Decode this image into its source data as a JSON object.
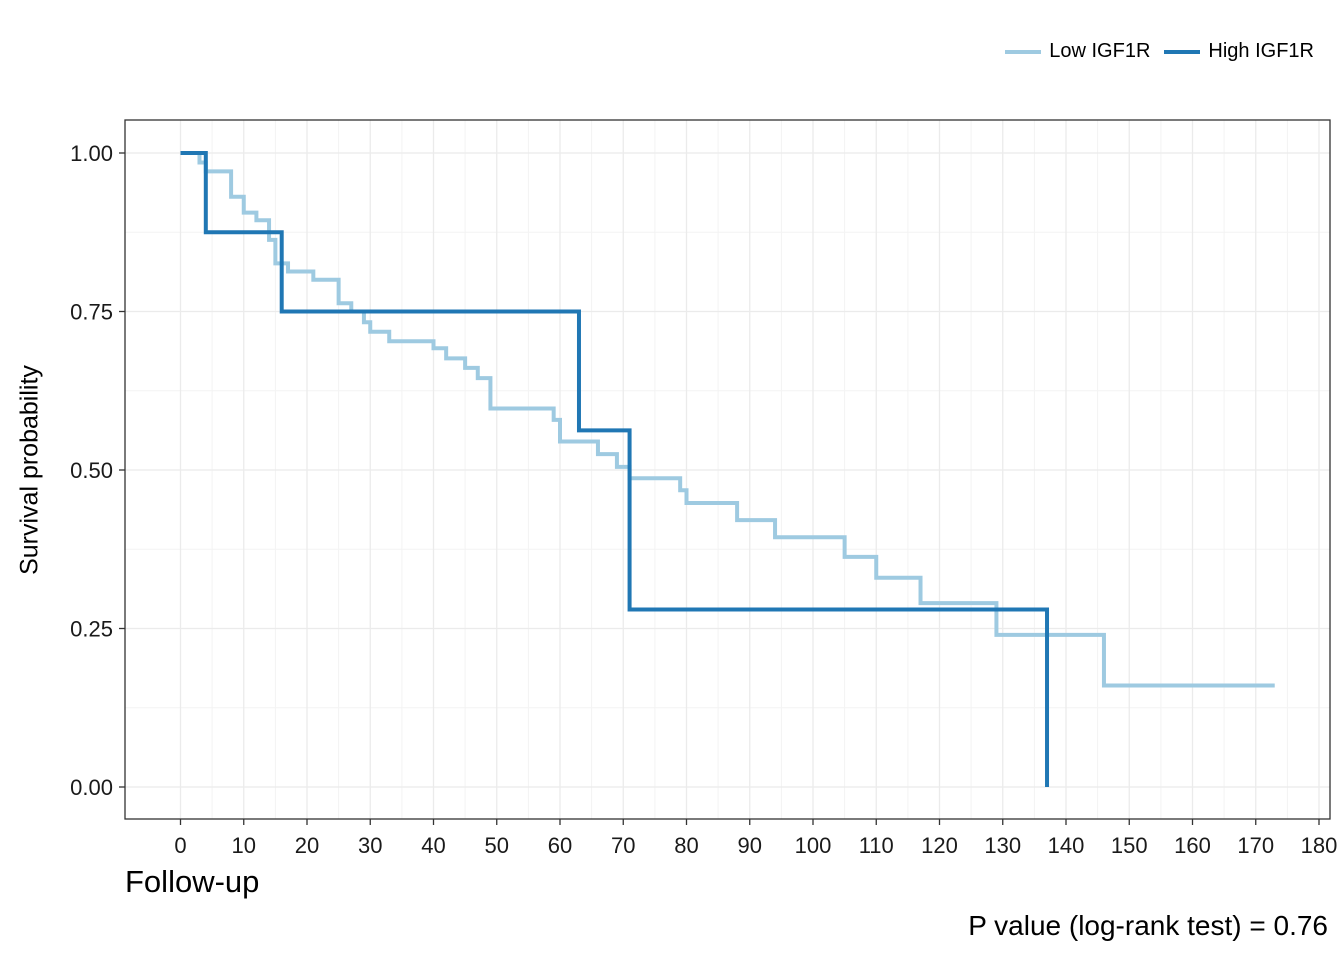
{
  "chart_data": {
    "type": "line",
    "subtype": "kaplan-meier step",
    "xlabel": "Follow-up",
    "ylabel": "Survival probability",
    "xlim": [
      0,
      180
    ],
    "ylim": [
      0,
      1
    ],
    "x_ticks": [
      0,
      10,
      20,
      30,
      40,
      50,
      60,
      70,
      80,
      90,
      100,
      110,
      120,
      130,
      140,
      150,
      160,
      170,
      180
    ],
    "y_ticks": [
      0.0,
      0.25,
      0.5,
      0.75,
      1.0
    ],
    "y_tick_labels": [
      "0.00",
      "0.25",
      "0.50",
      "0.75",
      "1.00"
    ],
    "grid": true,
    "legend_position": "top-right",
    "series": [
      {
        "name": "Low IGF1R",
        "color": "#9ecae1",
        "x": [
          0,
          3,
          4,
          8,
          10,
          12,
          14,
          15,
          17,
          21,
          25,
          27,
          29,
          30,
          33,
          40,
          42,
          45,
          47,
          49,
          59,
          60,
          66,
          69,
          71,
          79,
          80,
          88,
          94,
          105,
          110,
          117,
          129,
          137,
          146,
          173
        ],
        "y": [
          1.0,
          0.985,
          0.971,
          0.931,
          0.906,
          0.894,
          0.863,
          0.826,
          0.813,
          0.8,
          0.763,
          0.75,
          0.733,
          0.718,
          0.703,
          0.692,
          0.676,
          0.661,
          0.645,
          0.597,
          0.579,
          0.545,
          0.525,
          0.505,
          0.487,
          0.468,
          0.448,
          0.421,
          0.394,
          0.363,
          0.33,
          0.29,
          0.24,
          0.24,
          0.16,
          0.16
        ]
      },
      {
        "name": "High IGF1R",
        "color": "#2077b4",
        "x": [
          0,
          4,
          16,
          63,
          71,
          137,
          137
        ],
        "y": [
          1.0,
          0.875,
          0.75,
          0.5625,
          0.28,
          0.28,
          0.0
        ]
      }
    ],
    "annotation": "P value (log-rank test) = 0.76"
  }
}
